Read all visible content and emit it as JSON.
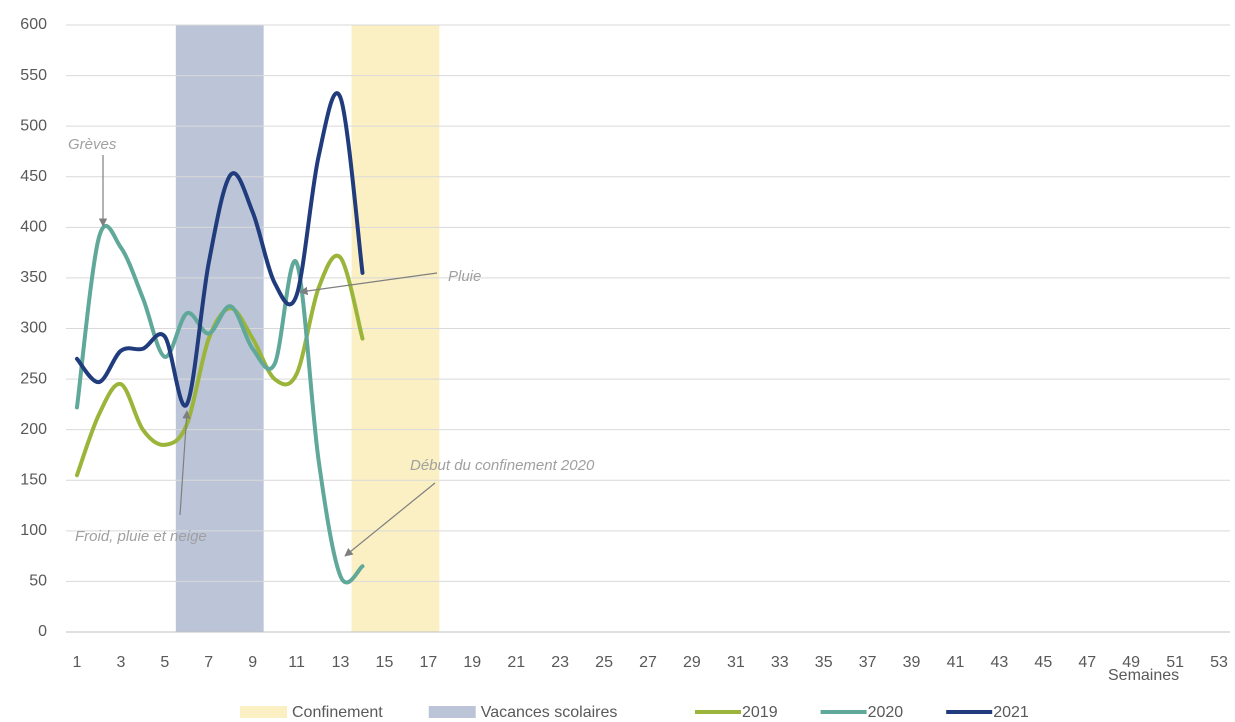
{
  "chart_data": {
    "type": "line",
    "x_label": "Semaines",
    "x": [
      1,
      2,
      3,
      4,
      5,
      6,
      7,
      8,
      9,
      10,
      11,
      12,
      13,
      14
    ],
    "xlim": [
      0.5,
      53.5
    ],
    "xticks": [
      1,
      3,
      5,
      7,
      9,
      11,
      13,
      15,
      17,
      19,
      21,
      23,
      25,
      27,
      29,
      31,
      33,
      35,
      37,
      39,
      41,
      43,
      45,
      47,
      49,
      51,
      53
    ],
    "ylim": [
      0,
      600
    ],
    "yticks": [
      0,
      50,
      100,
      150,
      200,
      250,
      300,
      350,
      400,
      450,
      500,
      550,
      600
    ],
    "grid": true,
    "legend": "bottom",
    "bands": [
      {
        "name": "Confinement",
        "color": "#fbf0c3",
        "xrange": [
          13.5,
          17.5
        ]
      },
      {
        "name": "Vacances scolaires",
        "color": "#bcc5d8",
        "xrange": [
          5.5,
          9.5
        ]
      }
    ],
    "series": [
      {
        "name": "2019",
        "color": "#9bb53a",
        "values": [
          155,
          215,
          245,
          200,
          185,
          205,
          290,
          320,
          290,
          250,
          255,
          340,
          370,
          290
        ]
      },
      {
        "name": "2020",
        "color": "#5fa89a",
        "values": [
          222,
          390,
          380,
          330,
          272,
          315,
          295,
          322,
          280,
          265,
          365,
          170,
          55,
          65
        ]
      },
      {
        "name": "2021",
        "color": "#213c7d",
        "values": [
          270,
          247,
          278,
          280,
          292,
          225,
          365,
          452,
          415,
          345,
          333,
          470,
          528,
          355
        ]
      }
    ],
    "annotations": [
      "Grèves",
      "Pluie",
      "Froid, pluie et neige",
      "Début du confinement 2020"
    ]
  }
}
